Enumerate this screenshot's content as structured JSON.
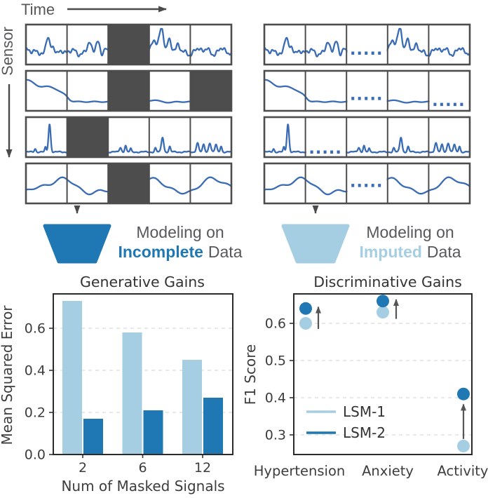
{
  "figure": {
    "time_label": "Time",
    "sensor_label": "Sensor",
    "panels_per_row": 5,
    "sensor_rows": [
      {
        "type": "noisy-peaks",
        "masked_panels": [
          {
            "panel": 2,
            "impute_level": 0.26
          }
        ]
      },
      {
        "type": "step-down",
        "masked_panels": [
          {
            "panel": 2,
            "impute_level": 0.29
          },
          {
            "panel": 4,
            "impute_level": 0.11
          }
        ]
      },
      {
        "type": "sparse-spikes",
        "masked_panels": [
          {
            "panel": 1,
            "impute_level": 0.07
          }
        ]
      },
      {
        "type": "smooth-wave",
        "masked_panels": [
          {
            "panel": 2,
            "impute_level": 0.46
          }
        ]
      }
    ],
    "left_caption": {
      "line1": "Modeling on",
      "highlight": "Incomplete",
      "rest": "Data"
    },
    "right_caption": {
      "line1": "Modeling on",
      "highlight": "Imputed",
      "rest": "Data"
    }
  },
  "colors": {
    "signal_blue": "#3a6cb5",
    "mask_gray": "#4d4d4d",
    "dark_blue": "#1f78b4",
    "light_blue": "#a6cee3",
    "label_gray": "#56585a",
    "arrow_gray": "#4a4a4a",
    "axis_text": "#3d3d3d",
    "grid_line": "#d9d9d9"
  },
  "chart_data": [
    {
      "type": "bar",
      "title": "Generative Gains",
      "xlabel": "Num of Masked Signals",
      "ylabel": "Mean Squared Error",
      "categories": [
        "2",
        "6",
        "12"
      ],
      "series": [
        {
          "name": "LSM-1",
          "color": "#a6cee3",
          "values": [
            0.73,
            0.58,
            0.45
          ]
        },
        {
          "name": "LSM-2",
          "color": "#1f78b4",
          "values": [
            0.17,
            0.21,
            0.27
          ]
        }
      ],
      "yticks": [
        "0.0",
        "0.2",
        "0.4",
        "0.6"
      ],
      "ylim": [
        0,
        0.763
      ],
      "grid": "horizontal-dashed",
      "legend_position": "none"
    },
    {
      "type": "scatter",
      "title": "Discriminative Gains",
      "xlabel": "",
      "ylabel": "F1 Score",
      "categories": [
        "Hypertension",
        "Anxiety",
        "Activity"
      ],
      "series": [
        {
          "name": "LSM-1",
          "color": "#a6cee3",
          "values": [
            0.6,
            0.63,
            0.27
          ]
        },
        {
          "name": "LSM-2",
          "color": "#1f78b4",
          "values": [
            0.64,
            0.66,
            0.41
          ]
        }
      ],
      "yticks": [
        "0.3",
        "0.4",
        "0.5",
        "0.6"
      ],
      "ylim": [
        0.25,
        0.68
      ],
      "grid": "horizontal-dashed",
      "legend": [
        "LSM-1",
        "LSM-2"
      ],
      "legend_position": "lower-left",
      "arrows": [
        {
          "category": "Hypertension",
          "from": 0.585,
          "to": 0.648,
          "x_offset": 18
        },
        {
          "category": "Anxiety",
          "from": 0.612,
          "to": 0.668,
          "x_offset": 19
        },
        {
          "category": "Activity",
          "from": 0.289,
          "to": 0.386,
          "x_offset": 0
        }
      ]
    }
  ]
}
